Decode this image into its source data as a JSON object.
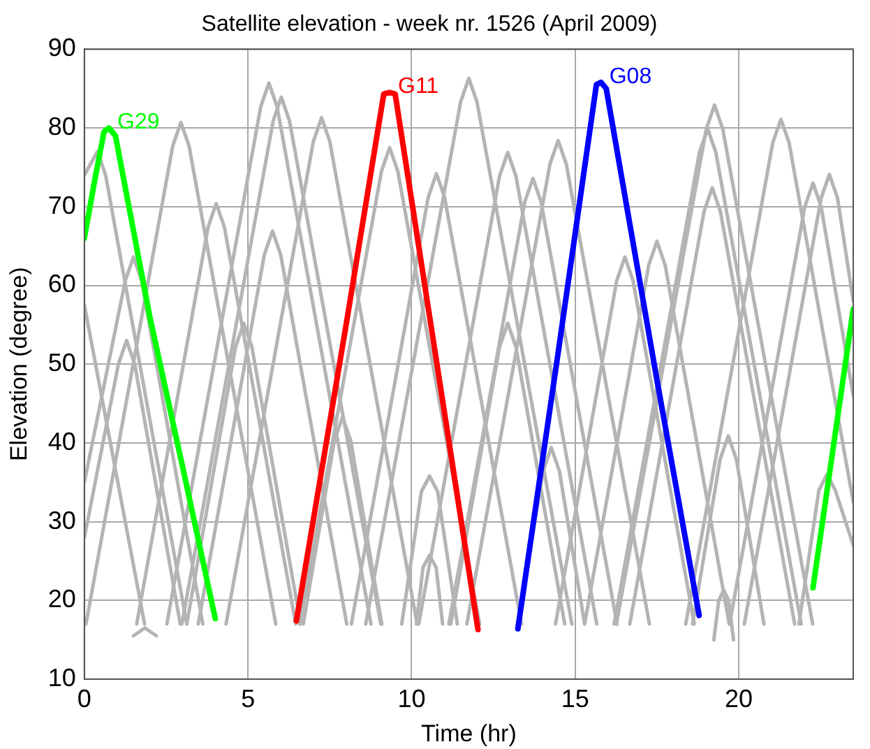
{
  "chart_data": {
    "type": "line",
    "title": "Satellite elevation - week nr. 1526 (April 2009)",
    "xlabel": "Time (hr)",
    "ylabel": "Elevation (degree)",
    "xlim": [
      0,
      23.5
    ],
    "xticks": [
      0,
      5,
      10,
      15,
      20
    ],
    "ylim": [
      10,
      90
    ],
    "yticks": [
      10,
      20,
      30,
      40,
      50,
      60,
      70,
      80,
      90
    ],
    "grid": true,
    "legend": false,
    "marker": "none",
    "line_style": "solid",
    "series": [
      {
        "color": "#b4b4b4",
        "x": [
          2.52,
          5.39,
          5.64,
          5.89,
          8.76
        ],
        "values": [
          17,
          82.7,
          85.7,
          82.7,
          17
        ]
      },
      {
        "color": "#b4b4b4",
        "x": [
          2.98,
          5.77,
          6.02,
          6.27,
          9.06
        ],
        "values": [
          17,
          80.9,
          83.9,
          80.9,
          17
        ]
      },
      {
        "color": "#b4b4b4",
        "x": [
          0.05,
          2.7,
          2.95,
          3.2,
          5.85
        ],
        "values": [
          17,
          77.7,
          80.7,
          77.7,
          17
        ]
      },
      {
        "color": "#b4b4b4",
        "x": [
          4.33,
          7,
          7.25,
          7.5,
          10.17
        ],
        "values": [
          17,
          78.3,
          81.3,
          78.3,
          17
        ]
      },
      {
        "color": "#b4b4b4",
        "x": [
          1.6,
          3.78,
          4.03,
          4.28,
          6.46
        ],
        "values": [
          17,
          67.4,
          70.4,
          67.4,
          17
        ]
      },
      {
        "color": "#b4b4b4",
        "x": [
          3.48,
          5.5,
          5.75,
          6,
          8.02
        ],
        "values": [
          17,
          63.9,
          66.9,
          63.9,
          17
        ]
      },
      {
        "color": "#b4b4b4",
        "x": [
          0,
          1.25,
          1.5,
          1.75,
          3.62
        ],
        "values": [
          35,
          60.6,
          63.6,
          60.6,
          17
        ]
      },
      {
        "color": "#b4b4b4",
        "x": [
          0,
          0.4,
          0.65,
          3.13
        ],
        "values": [
          74,
          77,
          74,
          17
        ]
      },
      {
        "color": "#b4b4b4",
        "x": [
          0,
          1.04,
          1.29,
          1.54,
          2.93
        ],
        "values": [
          28,
          50,
          53,
          50,
          17
        ]
      },
      {
        "color": "#b4b4b4",
        "x": [
          3.13,
          4.62,
          4.87,
          5.12,
          6.61
        ],
        "values": [
          17,
          52.2,
          55.2,
          52.2,
          17
        ]
      },
      {
        "color": "#b4b4b4",
        "x": [
          0,
          1.84
        ],
        "values": [
          57.5,
          17
        ]
      },
      {
        "color": "#b4b4b4",
        "x": [
          1.5,
          1.85,
          2.2
        ],
        "values": [
          15.5,
          16.5,
          15.5
        ]
      },
      {
        "color": "#b4b4b4",
        "x": [
          6.58,
          9.08,
          9.33,
          9.58,
          12.08
        ],
        "values": [
          17,
          74.5,
          77.5,
          74.5,
          17
        ]
      },
      {
        "color": "#b4b4b4",
        "x": [
          8.6,
          11.5,
          11.75,
          12,
          14.9
        ],
        "values": [
          17,
          83.3,
          86.3,
          83.3,
          17
        ]
      },
      {
        "color": "#b4b4b4",
        "x": [
          8.16,
          10.51,
          10.76,
          11.01,
          13.36
        ],
        "values": [
          17,
          71.2,
          74.2,
          71.2,
          17
        ]
      },
      {
        "color": "#b4b4b4",
        "x": [
          10.22,
          12.69,
          12.94,
          13.19,
          15.66
        ],
        "values": [
          17,
          73.9,
          76.9,
          73.9,
          17
        ]
      },
      {
        "color": "#b4b4b4",
        "x": [
          11.14,
          13.46,
          13.71,
          13.96,
          16.28
        ],
        "values": [
          17,
          70.6,
          73.6,
          70.6,
          17
        ]
      },
      {
        "color": "#b4b4b4",
        "x": [
          11.69,
          14.23,
          14.48,
          14.73,
          17.27
        ],
        "values": [
          17,
          75.4,
          78.4,
          75.4,
          17
        ]
      },
      {
        "color": "#b4b4b4",
        "x": [
          11.2,
          12.69,
          12.94,
          13.19,
          14.68
        ],
        "values": [
          17,
          52.2,
          55.2,
          52.2,
          17
        ]
      },
      {
        "color": "#b4b4b4",
        "x": [
          6.69,
          7.64,
          7.89,
          8.14,
          9.09
        ],
        "values": [
          17,
          40.3,
          43.3,
          40.3,
          17
        ]
      },
      {
        "color": "#b4b4b4",
        "x": [
          9.7,
          10.3,
          10.55,
          10.8,
          11.4
        ],
        "values": [
          17,
          33.8,
          35.8,
          33.8,
          17
        ]
      },
      {
        "color": "#b4b4b4",
        "x": [
          10.15,
          10.35,
          10.55,
          10.75,
          10.95
        ],
        "values": [
          17,
          24.2,
          25.7,
          24.2,
          17
        ]
      },
      {
        "color": "#b4b4b4",
        "x": [
          13.25,
          14.02,
          14.27,
          14.52,
          15.29
        ],
        "values": [
          17,
          36.4,
          39.4,
          36.4,
          17
        ]
      },
      {
        "color": "#b4b4b4",
        "x": [
          16.26,
          19.01,
          19.26,
          19.51,
          22.26
        ],
        "values": [
          17,
          79.9,
          82.9,
          79.9,
          17
        ]
      },
      {
        "color": "#b4b4b4",
        "x": [
          16.19,
          18.8,
          19.05,
          19.3,
          21.91
        ],
        "values": [
          17,
          76.9,
          79.9,
          76.9,
          17
        ]
      },
      {
        "color": "#b4b4b4",
        "x": [
          16.67,
          18.94,
          19.19,
          19.44,
          21.71
        ],
        "values": [
          17,
          69.4,
          72.4,
          69.4,
          17
        ]
      },
      {
        "color": "#b4b4b4",
        "x": [
          18.38,
          21.04,
          21.29,
          21.54,
          23.5
        ],
        "values": [
          17,
          78.1,
          81.1,
          78.1,
          32.5
        ]
      },
      {
        "color": "#b4b4b4",
        "x": [
          19.72,
          22.02,
          22.27,
          22.52,
          23.5
        ],
        "values": [
          17,
          70,
          73,
          70,
          46
        ]
      },
      {
        "color": "#b4b4b4",
        "x": [
          20.17,
          22.52,
          22.77,
          23.02,
          23.5
        ],
        "values": [
          17,
          71.1,
          74.1,
          71.1,
          58
        ]
      },
      {
        "color": "#b4b4b4",
        "x": [
          14.4,
          16.27,
          16.52,
          16.77,
          18.64
        ],
        "values": [
          17,
          60.6,
          63.6,
          60.6,
          17
        ]
      },
      {
        "color": "#b4b4b4",
        "x": [
          15.29,
          17.25,
          17.5,
          17.75,
          19.71
        ],
        "values": [
          17,
          62.6,
          65.6,
          62.6,
          17
        ]
      },
      {
        "color": "#b4b4b4",
        "x": [
          18.59,
          19.43,
          19.68,
          19.93,
          20.77
        ],
        "values": [
          17,
          37.9,
          40.9,
          37.9,
          17
        ]
      },
      {
        "color": "#b4b4b4",
        "x": [
          19.24,
          19.39,
          19.54,
          19.69,
          19.84
        ],
        "values": [
          15,
          20,
          21.3,
          20,
          15
        ]
      },
      {
        "color": "#b4b4b4",
        "x": [
          21.84,
          22.45,
          22.7,
          22.95,
          23.5
        ],
        "values": [
          17,
          34,
          36,
          34,
          27
        ]
      },
      {
        "name": "G29",
        "color": "#00ff00",
        "x": [
          0,
          0.3,
          0.6,
          0.75,
          0.95,
          2,
          3,
          4,
          13,
          22.27,
          23.5
        ],
        "values": [
          66,
          73,
          79.5,
          80,
          79,
          56,
          37,
          17.7,
          null,
          21.6,
          57
        ]
      },
      {
        "name": "G11",
        "color": "#ff0000",
        "x": [
          6.48,
          8,
          9.15,
          9.33,
          9.5,
          11,
          12.03
        ],
        "values": [
          17.4,
          55,
          84.3,
          84.5,
          84.3,
          44,
          16.3
        ]
      },
      {
        "name": "G08",
        "color": "#0000ff",
        "x": [
          13.25,
          14.5,
          15.65,
          15.79,
          15.95,
          17.5,
          18.79
        ],
        "values": [
          16.4,
          52,
          85.5,
          85.8,
          85,
          48,
          18.1
        ]
      }
    ]
  }
}
